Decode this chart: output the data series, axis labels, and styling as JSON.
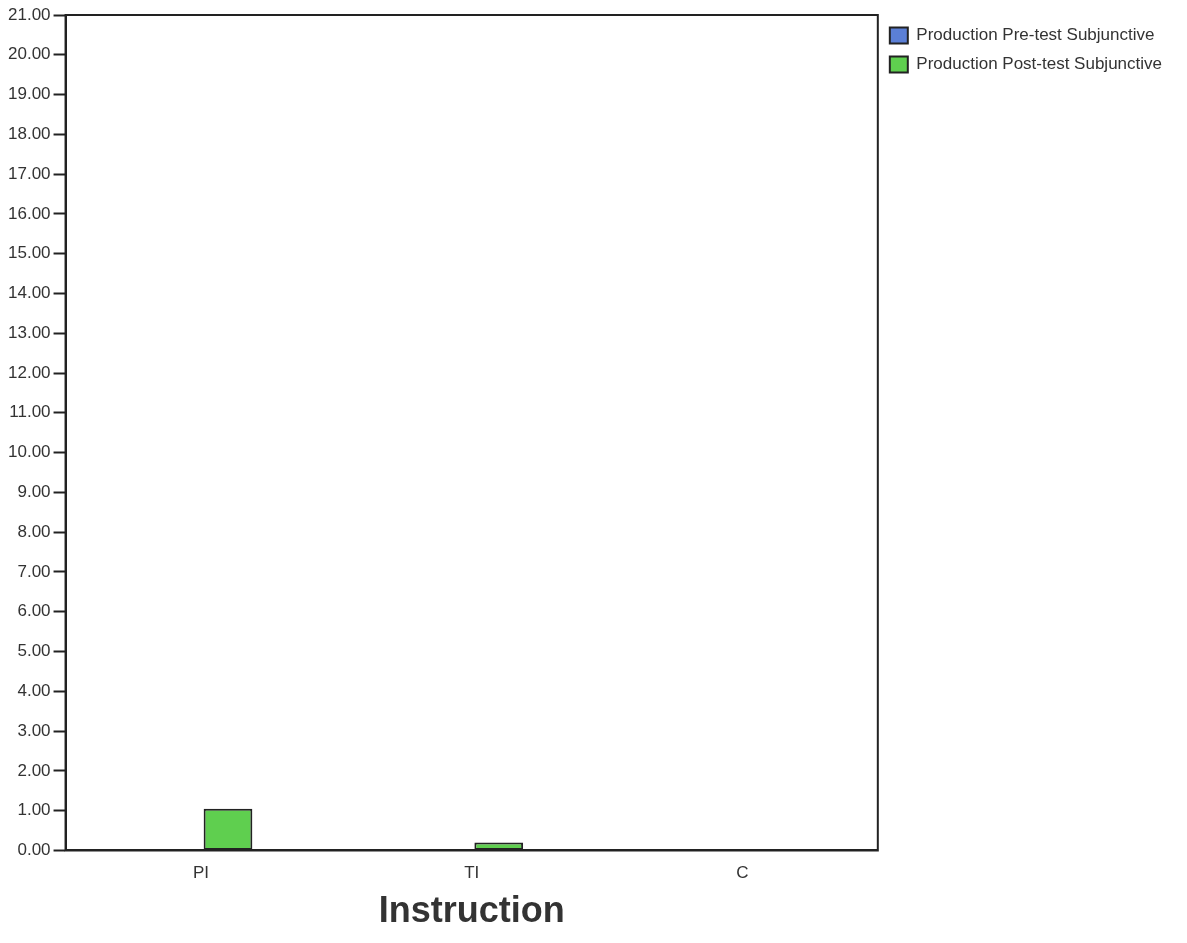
{
  "chart_data": {
    "type": "bar",
    "xlabel": "Instruction",
    "categories": [
      "PI",
      "TI",
      "C"
    ],
    "series": [
      {
        "name": "Production Pre-test Subjunctive",
        "color": "#5b7fd6",
        "values": [
          0,
          0,
          0
        ]
      },
      {
        "name": "Production Post-test Subjunctive",
        "color": "#5fcf4f",
        "values": [
          1.05,
          0.2,
          0
        ]
      }
    ],
    "ylim": [
      0,
      21
    ],
    "yticks": [
      {
        "value": 0,
        "label": "0.00"
      },
      {
        "value": 1,
        "label": "1.00"
      },
      {
        "value": 2,
        "label": "2.00"
      },
      {
        "value": 3,
        "label": "3.00"
      },
      {
        "value": 4,
        "label": "4.00"
      },
      {
        "value": 5,
        "label": "5.00"
      },
      {
        "value": 6,
        "label": "6.00"
      },
      {
        "value": 7,
        "label": "7.00"
      },
      {
        "value": 8,
        "label": "8.00"
      },
      {
        "value": 9,
        "label": "9.00"
      },
      {
        "value": 10,
        "label": "10.00"
      },
      {
        "value": 11,
        "label": "11.00"
      },
      {
        "value": 12,
        "label": "12.00"
      },
      {
        "value": 13,
        "label": "13.00"
      },
      {
        "value": 14,
        "label": "14.00"
      },
      {
        "value": 15,
        "label": "15.00"
      },
      {
        "value": 16,
        "label": "16.00"
      },
      {
        "value": 17,
        "label": "17.00"
      },
      {
        "value": 18,
        "label": "18.00"
      },
      {
        "value": 19,
        "label": "19.00"
      },
      {
        "value": 20,
        "label": "20.00"
      },
      {
        "value": 21,
        "label": "21.00"
      }
    ],
    "grid": false,
    "legend": "top right"
  }
}
